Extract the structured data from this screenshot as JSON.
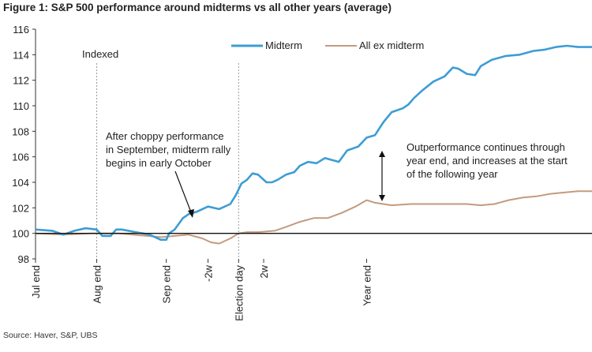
{
  "figure": {
    "title": "Figure 1: S&P 500 performance around midterms vs all other years (average)",
    "source": "Source:  Haver, S&P, UBS"
  },
  "chart_data": {
    "type": "line",
    "title": "Figure 1: S&P 500 performance around midterms vs all other years (average)",
    "ylim": [
      98,
      116
    ],
    "y_ticks": [
      "98",
      "100",
      "102",
      "104",
      "106",
      "108",
      "110",
      "112",
      "114",
      "116"
    ],
    "x_ticks": [
      "Jul end",
      "Aug end",
      "Sep end",
      "-2w",
      "Election day",
      "2w",
      "Year end"
    ],
    "legend_position": "top-right",
    "baseline": 100,
    "x_range": [
      0,
      200
    ],
    "x_tick_positions": [
      0,
      22,
      47,
      62,
      73,
      82,
      119
    ],
    "series": [
      {
        "name": "Midterm",
        "color": "#3d9dd4",
        "x": [
          0,
          6,
          10,
          14,
          18,
          22,
          24,
          27,
          29,
          31,
          36,
          41,
          45,
          47,
          48,
          50,
          53,
          55,
          58,
          62,
          66,
          70,
          72,
          74,
          76,
          78,
          80,
          83,
          85,
          87,
          90,
          93,
          95,
          98,
          101,
          104,
          109,
          112,
          116,
          119,
          122,
          125,
          128,
          132,
          134,
          136,
          139,
          143,
          147,
          150,
          152,
          155,
          158,
          160,
          164,
          169,
          174,
          179,
          183,
          187,
          191,
          195,
          200
        ],
        "values": [
          100.3,
          100.2,
          99.9,
          100.2,
          100.4,
          100.3,
          99.8,
          99.8,
          100.3,
          100.3,
          100.1,
          99.9,
          99.5,
          99.5,
          100.0,
          100.3,
          101.2,
          101.5,
          101.7,
          102.1,
          101.9,
          102.3,
          103.0,
          103.9,
          104.2,
          104.7,
          104.6,
          104.0,
          104.0,
          104.2,
          104.6,
          104.8,
          105.3,
          105.6,
          105.5,
          105.9,
          105.6,
          106.5,
          106.8,
          107.5,
          107.7,
          108.7,
          109.5,
          109.8,
          110.1,
          110.6,
          111.2,
          111.9,
          112.3,
          113.0,
          112.9,
          112.5,
          112.4,
          113.1,
          113.6,
          113.9,
          114.0,
          114.3,
          114.4,
          114.6,
          114.7,
          114.6,
          114.6
        ]
      },
      {
        "name": "All ex midterm",
        "color": "#c49a7e",
        "x": [
          0,
          10,
          20,
          30,
          40,
          45,
          50,
          55,
          60,
          63,
          66,
          68,
          70,
          73,
          76,
          80,
          86,
          90,
          95,
          100,
          105,
          110,
          115,
          119,
          122,
          128,
          135,
          145,
          155,
          160,
          165,
          170,
          175,
          180,
          185,
          190,
          195,
          200
        ],
        "values": [
          100.0,
          99.9,
          100.0,
          100.0,
          99.8,
          99.7,
          99.8,
          99.9,
          99.6,
          99.3,
          99.2,
          99.4,
          99.6,
          100.0,
          100.1,
          100.1,
          100.2,
          100.5,
          100.9,
          101.2,
          101.2,
          101.6,
          102.1,
          102.6,
          102.4,
          102.2,
          102.3,
          102.3,
          102.3,
          102.2,
          102.3,
          102.6,
          102.8,
          102.9,
          103.1,
          103.2,
          103.3,
          103.3
        ]
      }
    ],
    "markers": [
      {
        "label": "Indexed",
        "x": 22
      },
      {
        "label": "",
        "x": 73
      }
    ],
    "annotations": {
      "choppy": [
        "After choppy performance",
        "in September, midterm rally",
        "begins in early October"
      ],
      "outperformance": [
        "Outperformance continues through",
        "year end, and increases at the start",
        "of the following year"
      ]
    }
  }
}
